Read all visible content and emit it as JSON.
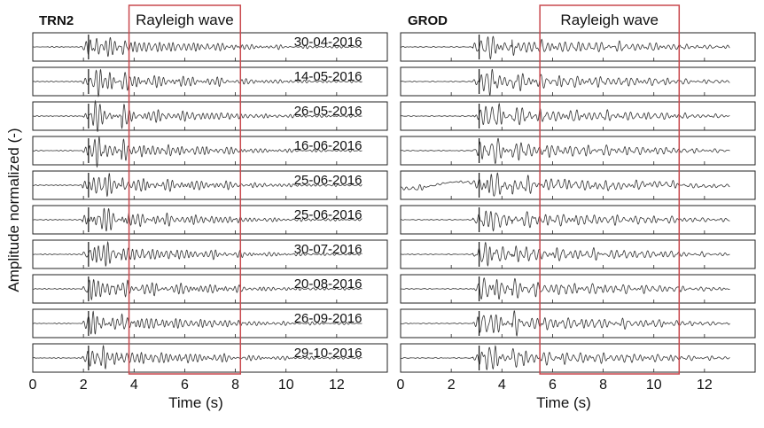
{
  "figure": {
    "ylabel": "Amplitude normalized (-)",
    "rayleigh_color": "#c9494e",
    "trace_color": "#333333"
  },
  "chart_data": [
    {
      "type": "line",
      "title": "TRN2",
      "xlabel": "Time (s)",
      "ylabel": "Amplitude normalized (-)",
      "xlim": [
        0,
        14
      ],
      "xticks": [
        0,
        2,
        4,
        6,
        8,
        10,
        12
      ],
      "rayleigh_window": {
        "label": "Rayleigh wave",
        "x_start": 3.8,
        "x_end": 8.2
      },
      "arrival_marker": 2.2,
      "traces": [
        {
          "date": "30-04-2016"
        },
        {
          "date": "14-05-2016"
        },
        {
          "date": "26-05-2016"
        },
        {
          "date": "16-06-2016"
        },
        {
          "date": "25-06-2016"
        },
        {
          "date": "25-06-2016"
        },
        {
          "date": "30-07-2016"
        },
        {
          "date": "20-08-2016"
        },
        {
          "date": "26-09-2016"
        },
        {
          "date": "29-10-2016"
        }
      ]
    },
    {
      "type": "line",
      "title": "GROD",
      "xlabel": "Time (s)",
      "xlim": [
        0,
        14
      ],
      "xticks": [
        0,
        2,
        4,
        6,
        8,
        10,
        12
      ],
      "rayleigh_window": {
        "label": "Rayleigh wave",
        "x_start": 5.5,
        "x_end": 11.0
      },
      "arrival_marker": 3.1,
      "traces": [
        {},
        {},
        {},
        {},
        {},
        {},
        {},
        {},
        {},
        {}
      ]
    }
  ]
}
